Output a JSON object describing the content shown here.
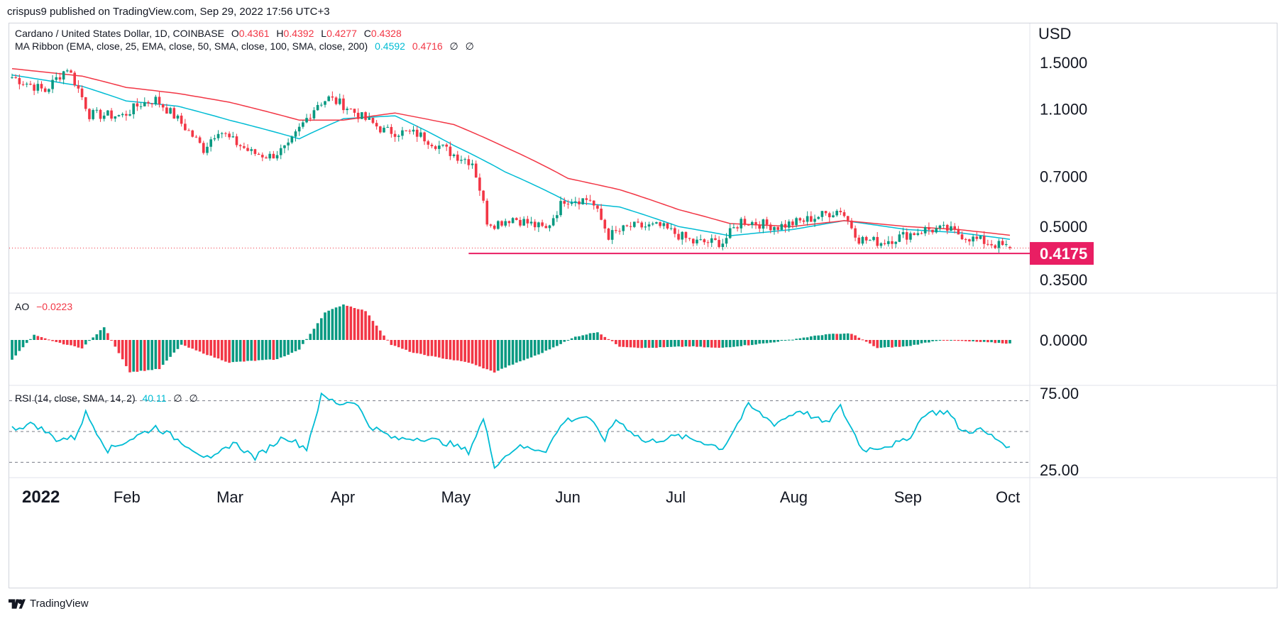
{
  "publisher": "crispus9 published on TradingView.com, Sep 29, 2022 17:56 UTC+3",
  "footer": {
    "brand": "TradingView"
  },
  "legend": {
    "symbol": "Cardano / United States Dollar, 1D, COINBASE",
    "o_label": "O",
    "o": "0.4361",
    "h_label": "H",
    "h": "0.4392",
    "l_label": "L",
    "l": "0.4277",
    "c_label": "C",
    "c": "0.4328",
    "ma_title": "MA Ribbon (EMA, close, 25, EMA, close, 50, SMA, close, 100, SMA, close, 200)",
    "ma1": "0.4592",
    "ma2": "0.4716",
    "ma3": "∅",
    "ma4": "∅",
    "ao_title": "AO",
    "ao_value": "−0.0223",
    "rsi_title": "RSI (14, close, SMA, 14, 2)",
    "rsi_value": "40.11",
    "rsi_e1": "∅",
    "rsi_e2": "∅"
  },
  "currency": "USD",
  "colors": {
    "up": "#089981",
    "down": "#f23645",
    "ema25": "#00bcd4",
    "ema50": "#f23645",
    "support": "#e91e63",
    "rsi": "#00bcd4"
  },
  "chart_data": [
    {
      "type": "candlestick",
      "title": "Cardano / United States Dollar, 1D, COINBASE",
      "yscale": "log",
      "ylim": [
        0.32,
        1.95
      ],
      "y_ticks": [
        "1.5000",
        "1.1000",
        "0.7000",
        "0.5000",
        "0.3500"
      ],
      "y_tick_values": [
        1.5,
        1.1,
        0.7,
        0.5,
        0.35
      ],
      "x_labels": [
        "2022",
        "Feb",
        "Mar",
        "Apr",
        "May",
        "Jun",
        "Jul",
        "Aug",
        "Sep",
        "Oct"
      ],
      "x_range": [
        "2022-01-01",
        "2022-09-29"
      ],
      "last_price_label": "0.4175",
      "support_level": 0.4175,
      "close_anchor_dates": [
        "2022-01-01",
        "2022-01-10",
        "2022-01-16",
        "2022-01-22",
        "2022-01-31",
        "2022-02-05",
        "2022-02-09",
        "2022-02-14",
        "2022-02-22",
        "2022-02-26",
        "2022-03-01",
        "2022-03-07",
        "2022-03-12",
        "2022-03-17",
        "2022-03-25",
        "2022-03-28",
        "2022-04-01",
        "2022-04-06",
        "2022-04-12",
        "2022-04-21",
        "2022-05-01",
        "2022-05-06",
        "2022-05-10",
        "2022-05-12",
        "2022-05-17",
        "2022-05-26",
        "2022-05-31",
        "2022-06-07",
        "2022-06-12",
        "2022-06-18",
        "2022-06-26",
        "2022-07-05",
        "2022-07-13",
        "2022-07-18",
        "2022-07-28",
        "2022-08-04",
        "2022-08-14",
        "2022-08-19",
        "2022-08-25",
        "2022-08-31",
        "2022-09-06",
        "2022-09-12",
        "2022-09-19",
        "2022-09-29"
      ],
      "close_anchor_values": [
        1.36,
        1.24,
        1.45,
        1.06,
        1.05,
        1.14,
        1.17,
        1.05,
        0.84,
        0.96,
        0.9,
        0.82,
        0.8,
        0.85,
        1.14,
        1.18,
        1.13,
        1.04,
        0.95,
        0.93,
        0.81,
        0.77,
        0.52,
        0.51,
        0.53,
        0.49,
        0.6,
        0.6,
        0.47,
        0.5,
        0.5,
        0.45,
        0.45,
        0.52,
        0.5,
        0.52,
        0.56,
        0.46,
        0.45,
        0.47,
        0.49,
        0.49,
        0.46,
        0.4328
      ],
      "series": [
        {
          "name": "EMA 25",
          "value": "0.4592",
          "anchor_dates": [
            "2022-01-01",
            "2022-01-20",
            "2022-02-01",
            "2022-02-15",
            "2022-03-01",
            "2022-03-20",
            "2022-04-01",
            "2022-04-15",
            "2022-05-01",
            "2022-05-15",
            "2022-06-01",
            "2022-06-15",
            "2022-07-01",
            "2022-07-15",
            "2022-08-01",
            "2022-08-15",
            "2022-09-01",
            "2022-09-15",
            "2022-09-29"
          ],
          "anchor_values": [
            1.38,
            1.28,
            1.16,
            1.12,
            1.02,
            0.9,
            1.03,
            1.05,
            0.86,
            0.72,
            0.59,
            0.57,
            0.5,
            0.47,
            0.49,
            0.52,
            0.49,
            0.48,
            0.459
          ]
        },
        {
          "name": "EMA 50",
          "value": "0.4716",
          "anchor_dates": [
            "2022-01-01",
            "2022-01-20",
            "2022-02-01",
            "2022-02-15",
            "2022-03-01",
            "2022-03-20",
            "2022-04-01",
            "2022-04-15",
            "2022-05-01",
            "2022-05-15",
            "2022-06-01",
            "2022-06-15",
            "2022-07-01",
            "2022-07-15",
            "2022-08-01",
            "2022-08-15",
            "2022-09-01",
            "2022-09-15",
            "2022-09-29"
          ],
          "anchor_values": [
            1.44,
            1.37,
            1.27,
            1.22,
            1.15,
            1.02,
            1.02,
            1.07,
            0.99,
            0.85,
            0.69,
            0.64,
            0.56,
            0.51,
            0.5,
            0.52,
            0.5,
            0.49,
            0.4716
          ]
        }
      ]
    },
    {
      "type": "bar",
      "title": "AO",
      "y_ticks": [
        "0.0000"
      ],
      "last_value": -0.0223,
      "anchor_dates": [
        "2022-01-01",
        "2022-01-07",
        "2022-01-14",
        "2022-01-20",
        "2022-01-26",
        "2022-02-02",
        "2022-02-10",
        "2022-02-16",
        "2022-02-24",
        "2022-03-01",
        "2022-03-07",
        "2022-03-14",
        "2022-03-20",
        "2022-03-27",
        "2022-04-01",
        "2022-04-07",
        "2022-04-14",
        "2022-04-20",
        "2022-04-27",
        "2022-05-05",
        "2022-05-12",
        "2022-05-16",
        "2022-05-24",
        "2022-06-03",
        "2022-06-09",
        "2022-06-15",
        "2022-06-22",
        "2022-07-04",
        "2022-07-12",
        "2022-07-25",
        "2022-08-10",
        "2022-08-17",
        "2022-08-24",
        "2022-09-01",
        "2022-09-10",
        "2022-09-29"
      ],
      "anchor_values": [
        -0.12,
        0.03,
        -0.02,
        -0.05,
        0.08,
        -0.2,
        -0.18,
        -0.03,
        -0.1,
        -0.14,
        -0.13,
        -0.12,
        -0.06,
        0.17,
        0.22,
        0.18,
        -0.03,
        -0.08,
        -0.11,
        -0.14,
        -0.2,
        -0.16,
        -0.09,
        0.02,
        0.05,
        -0.04,
        -0.05,
        -0.04,
        -0.05,
        -0.02,
        0.035,
        0.04,
        -0.05,
        -0.04,
        0.0,
        -0.0223
      ]
    },
    {
      "type": "line",
      "title": "RSI (14, close, SMA, 14, 2)",
      "y_ticks": [
        "75.00",
        "25.00"
      ],
      "ylim": [
        20,
        80
      ],
      "bands": [
        70,
        50,
        30
      ],
      "last_value": 40.11,
      "anchor_dates": [
        "2022-01-01",
        "2022-01-07",
        "2022-01-13",
        "2022-01-18",
        "2022-01-21",
        "2022-01-27",
        "2022-02-03",
        "2022-02-09",
        "2022-02-17",
        "2022-02-24",
        "2022-03-02",
        "2022-03-08",
        "2022-03-16",
        "2022-03-22",
        "2022-03-26",
        "2022-03-31",
        "2022-04-04",
        "2022-04-08",
        "2022-04-15",
        "2022-04-22",
        "2022-04-30",
        "2022-05-05",
        "2022-05-09",
        "2022-05-12",
        "2022-05-18",
        "2022-05-26",
        "2022-05-31",
        "2022-06-06",
        "2022-06-11",
        "2022-06-14",
        "2022-06-22",
        "2022-07-01",
        "2022-07-08",
        "2022-07-13",
        "2022-07-20",
        "2022-07-27",
        "2022-08-03",
        "2022-08-10",
        "2022-08-14",
        "2022-08-20",
        "2022-08-27",
        "2022-09-01",
        "2022-09-06",
        "2022-09-12",
        "2022-09-16",
        "2022-09-21",
        "2022-09-29"
      ],
      "anchor_values": [
        52,
        55,
        45,
        46,
        62,
        38,
        46,
        53,
        42,
        31,
        43,
        33,
        47,
        39,
        73,
        68,
        70,
        54,
        45,
        46,
        42,
        37,
        58,
        28,
        40,
        38,
        57,
        60,
        45,
        58,
        43,
        47,
        43,
        39,
        67,
        55,
        64,
        55,
        66,
        38,
        41,
        44,
        62,
        63,
        50,
        51,
        40.11
      ]
    }
  ]
}
